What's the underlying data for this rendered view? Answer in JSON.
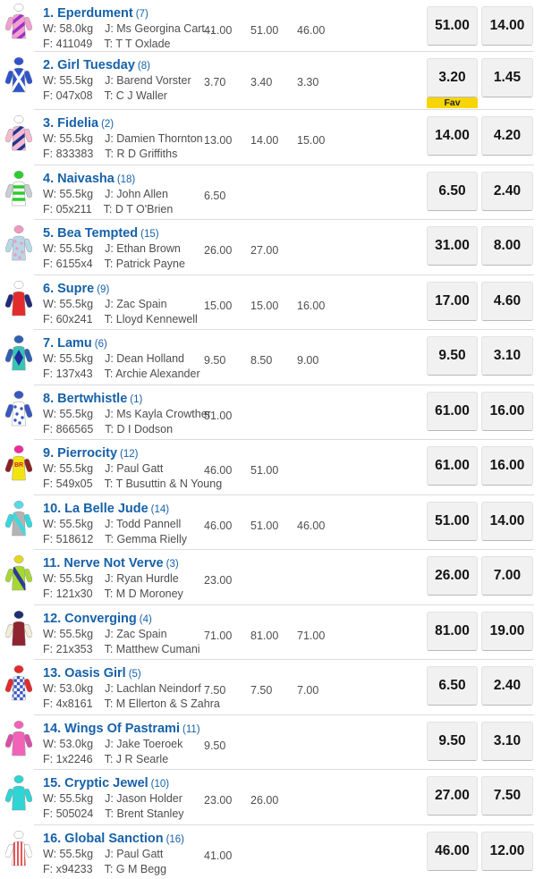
{
  "labels": {
    "fav": "Fav"
  },
  "colors": {
    "runner_name_blue": "#1661a9",
    "detail_gray": "#4e4e4e",
    "odds_button_bg": "#f1f1f1",
    "fav_yellow": "#f8d506",
    "divider": "#dcdcdc"
  },
  "runners": [
    {
      "name": "1. Eperdument",
      "barrier": "(7)",
      "weight": "W: 58.0kg",
      "jockey": "J: Ms Georgina Cart...",
      "form": "F: 411049",
      "trainer": "T: T T Oxlade",
      "flucs": [
        "41.00",
        "51.00",
        "46.00"
      ],
      "win": "51.00",
      "place": "14.00",
      "fav": false,
      "silk": {
        "body": "#f2a0cd",
        "sleeves": "#f2a0cd",
        "cap": "#ffffff",
        "pattern": "stripes",
        "pattern_color": "#9b30c8"
      }
    },
    {
      "name": "2. Girl Tuesday",
      "barrier": "(8)",
      "weight": "W: 55.5kg",
      "jockey": "J: Barend Vorster",
      "form": "F: 047x08",
      "trainer": "T: C J Waller",
      "flucs": [
        "3.70",
        "3.40",
        "3.30"
      ],
      "win": "3.20",
      "place": "1.45",
      "fav": true,
      "silk": {
        "body": "#2f54c9",
        "sleeves": "#2f54c9",
        "cap": "#2f54c9",
        "pattern": "cross",
        "pattern_color": "#ffffff"
      }
    },
    {
      "name": "3. Fidelia",
      "barrier": "(2)",
      "weight": "W: 55.5kg",
      "jockey": "J: Damien Thornton",
      "form": "F: 833383",
      "trainer": "T: R D Griffiths",
      "flucs": [
        "13.00",
        "14.00",
        "15.00"
      ],
      "win": "14.00",
      "place": "4.20",
      "fav": false,
      "silk": {
        "body": "#f6b9d2",
        "sleeves": "#f6b9d2",
        "cap": "#ffffff",
        "pattern": "stripes",
        "pattern_color": "#20368f"
      }
    },
    {
      "name": "4. Naivasha",
      "barrier": "(18)",
      "weight": "W: 55.5kg",
      "jockey": "J: John Allen",
      "form": "F: 05x211",
      "trainer": "T: D T O'Brien",
      "flucs": [
        "6.50"
      ],
      "win": "6.50",
      "place": "2.40",
      "fav": false,
      "silk": {
        "body": "#ffffff",
        "sleeves": "#c9ced2",
        "cap": "#2ecc2e",
        "pattern": "hoops",
        "pattern_color": "#2ecc2e"
      }
    },
    {
      "name": "5. Bea Tempted",
      "barrier": "(15)",
      "weight": "W: 55.5kg",
      "jockey": "J: Ethan Brown",
      "form": "F: 6155x4",
      "trainer": "T: Patrick Payne",
      "flucs": [
        "26.00",
        "27.00"
      ],
      "win": "31.00",
      "place": "8.00",
      "fav": false,
      "silk": {
        "body": "#b8d8e8",
        "sleeves": "#b8d8e8",
        "cap": "#f09ac0",
        "pattern": "spots",
        "pattern_color": "#f09ac0"
      }
    },
    {
      "name": "6. Supre",
      "barrier": "(9)",
      "weight": "W: 55.5kg",
      "jockey": "J: Zac Spain",
      "form": "F: 60x241",
      "trainer": "T: Lloyd Kennewell",
      "flucs": [
        "15.00",
        "15.00",
        "16.00"
      ],
      "win": "17.00",
      "place": "4.60",
      "fav": false,
      "silk": {
        "body": "#e32b2b",
        "sleeves": "#232a7a",
        "cap": "#ffffff",
        "pattern": "none",
        "pattern_color": "#ffffff"
      }
    },
    {
      "name": "7. Lamu",
      "barrier": "(6)",
      "weight": "W: 55.5kg",
      "jockey": "J: Dean Holland",
      "form": "F: 137x43",
      "trainer": "T: Archie Alexander",
      "flucs": [
        "9.50",
        "8.50",
        "9.00"
      ],
      "win": "9.50",
      "place": "3.10",
      "fav": false,
      "silk": {
        "body": "#38c4b2",
        "sleeves": "#2f5fb0",
        "cap": "#2f5fb0",
        "pattern": "diamond",
        "pattern_color": "#1c2f9e"
      }
    },
    {
      "name": "8. Bertwhistle",
      "barrier": "(1)",
      "weight": "W: 55.5kg",
      "jockey": "J: Ms Kayla Crowther",
      "form": "F: 866565",
      "trainer": "T: D I Dodson",
      "flucs": [
        "51.00"
      ],
      "win": "61.00",
      "place": "16.00",
      "fav": false,
      "silk": {
        "body": "#ffffff",
        "sleeves": "#3a57c0",
        "cap": "#3a57c0",
        "pattern": "spots",
        "pattern_color": "#3a57c0"
      }
    },
    {
      "name": "9. Pierrocity",
      "barrier": "(12)",
      "weight": "W: 55.5kg",
      "jockey": "J: Paul Gatt",
      "form": "F: 549x05",
      "trainer": "T: T Busuttin & N Young",
      "flucs": [
        "46.00",
        "51.00"
      ],
      "win": "61.00",
      "place": "16.00",
      "fav": false,
      "silk": {
        "body": "#f2e411",
        "sleeves": "#8c2222",
        "cap": "#ee2aa0",
        "pattern": "text",
        "pattern_color": "#d42222",
        "pattern_text": "BR"
      }
    },
    {
      "name": "10. La Belle Jude",
      "barrier": "(14)",
      "weight": "W: 55.5kg",
      "jockey": "J: Todd Pannell",
      "form": "F: 518612",
      "trainer": "T: Gemma Rielly",
      "flucs": [
        "46.00",
        "51.00",
        "46.00"
      ],
      "win": "51.00",
      "place": "14.00",
      "fav": false,
      "silk": {
        "body": "#b3b3b3",
        "sleeves": "#35d8dc",
        "cap": "#58d8e8",
        "pattern": "sash",
        "pattern_color": "#3fd8dc"
      }
    },
    {
      "name": "11. Nerve Not Verve",
      "barrier": "(3)",
      "weight": "W: 55.5kg",
      "jockey": "J: Ryan Hurdle",
      "form": "F: 121x30",
      "trainer": "T: M D Moroney",
      "flucs": [
        "23.00"
      ],
      "win": "26.00",
      "place": "7.00",
      "fav": false,
      "silk": {
        "body": "#a6d832",
        "sleeves": "#a6d832",
        "cap": "#e3d820",
        "pattern": "sash",
        "pattern_color": "#2c3c94"
      }
    },
    {
      "name": "12. Converging",
      "barrier": "(4)",
      "weight": "W: 55.5kg",
      "jockey": "J: Zac Spain",
      "form": "F: 21x353",
      "trainer": "T: Matthew Cumani",
      "flucs": [
        "71.00",
        "81.00",
        "71.00"
      ],
      "win": "81.00",
      "place": "19.00",
      "fav": false,
      "silk": {
        "body": "#8e2430",
        "sleeves": "#f2ecd8",
        "cap": "#1c2f6e",
        "pattern": "none",
        "pattern_color": "#ffffff"
      }
    },
    {
      "name": "13. Oasis Girl",
      "barrier": "(5)",
      "weight": "W: 53.0kg",
      "jockey": "J: Lachlan Neindorf",
      "form": "F: 4x8161",
      "trainer": "T: M Ellerton & S Zahra",
      "flucs": [
        "7.50",
        "7.50",
        "7.00"
      ],
      "win": "6.50",
      "place": "2.40",
      "fav": false,
      "silk": {
        "body": "#ffffff",
        "sleeves": "#e32b2b",
        "cap": "#e32b2b",
        "pattern": "check",
        "pattern_color": "#3a57c0"
      }
    },
    {
      "name": "14. Wings Of Pastrami",
      "barrier": "(11)",
      "weight": "W: 53.0kg",
      "jockey": "J: Jake Toeroek",
      "form": "F: 1x2246",
      "trainer": "T: J R Searle",
      "flucs": [
        "9.50"
      ],
      "win": "9.50",
      "place": "3.10",
      "fav": false,
      "silk": {
        "body": "#f263b8",
        "sleeves": "#d94fa4",
        "cap": "#f263b8",
        "pattern": "none",
        "pattern_color": "#ffffff"
      }
    },
    {
      "name": "15. Cryptic Jewel",
      "barrier": "(10)",
      "weight": "W: 55.5kg",
      "jockey": "J: Jason Holder",
      "form": "F: 505024",
      "trainer": "T: Brent Stanley",
      "flucs": [
        "23.00",
        "26.00"
      ],
      "win": "27.00",
      "place": "7.50",
      "fav": false,
      "silk": {
        "body": "#2fd4d4",
        "sleeves": "#2fd4d4",
        "cap": "#2fd4d4",
        "pattern": "none",
        "pattern_color": "#ffffff"
      }
    },
    {
      "name": "16. Global Sanction",
      "barrier": "(16)",
      "weight": "W: 55.5kg",
      "jockey": "J: Paul Gatt",
      "form": "F: x94233",
      "trainer": "T: G M Begg",
      "flucs": [
        "41.00"
      ],
      "win": "46.00",
      "place": "12.00",
      "fav": false,
      "silk": {
        "body": "#ffffff",
        "sleeves": "#ffffff",
        "cap": "#ffffff",
        "pattern": "vstripes",
        "pattern_color": "#e32b2b"
      }
    }
  ]
}
